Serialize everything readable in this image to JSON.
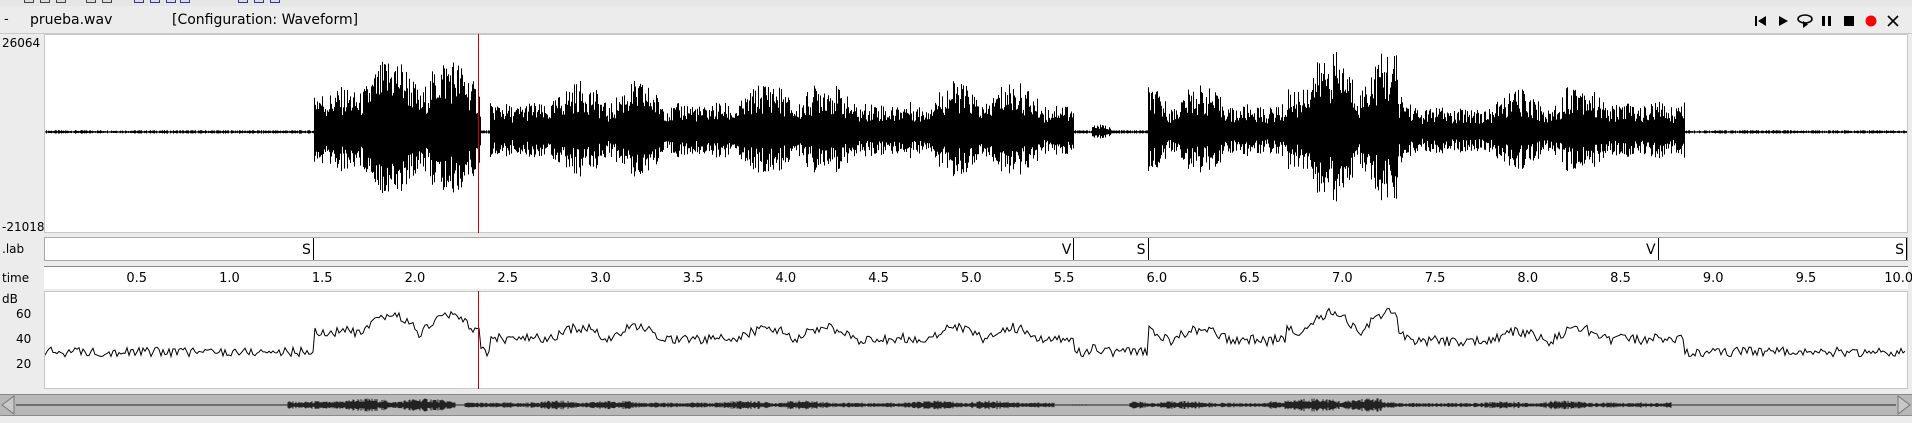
{
  "window": {
    "dash": "-",
    "filename": "prueba.wav",
    "configuration": "[Configuration: Waveform]"
  },
  "controls": [
    {
      "name": "skip-to-start-icon"
    },
    {
      "name": "play-icon"
    },
    {
      "name": "loop-play-icon"
    },
    {
      "name": "pause-icon"
    },
    {
      "name": "stop-icon"
    },
    {
      "name": "record-icon",
      "color": "#ff0000"
    },
    {
      "name": "close-icon"
    }
  ],
  "waveform": {
    "max_label": "26064",
    "min_label": "-21018",
    "color": "#000000"
  },
  "label_lane": {
    "name": ".lab",
    "marks": [
      {
        "text": "S",
        "time": 1.45
      },
      {
        "text": "V",
        "time": 5.55
      },
      {
        "text": "S",
        "time": 5.95
      },
      {
        "text": "V",
        "time": 8.7
      },
      {
        "text": "S",
        "time": 10.05
      }
    ]
  },
  "time_axis": {
    "name": "time",
    "ticks": [
      "0.5",
      "1.0",
      "1.5",
      "2.0",
      "2.5",
      "3.0",
      "3.5",
      "4.0",
      "4.5",
      "5.0",
      "5.5",
      "6.0",
      "6.5",
      "7.0",
      "7.5",
      "8.0",
      "8.5",
      "9.0",
      "9.5",
      "10.0"
    ],
    "range": [
      0.0,
      10.05
    ]
  },
  "energy": {
    "unit": "dB",
    "ticks": [
      "60",
      "40",
      "20"
    ],
    "range": [
      10,
      70
    ]
  },
  "cursor": {
    "time": 2.34,
    "color": "#d00000"
  }
}
